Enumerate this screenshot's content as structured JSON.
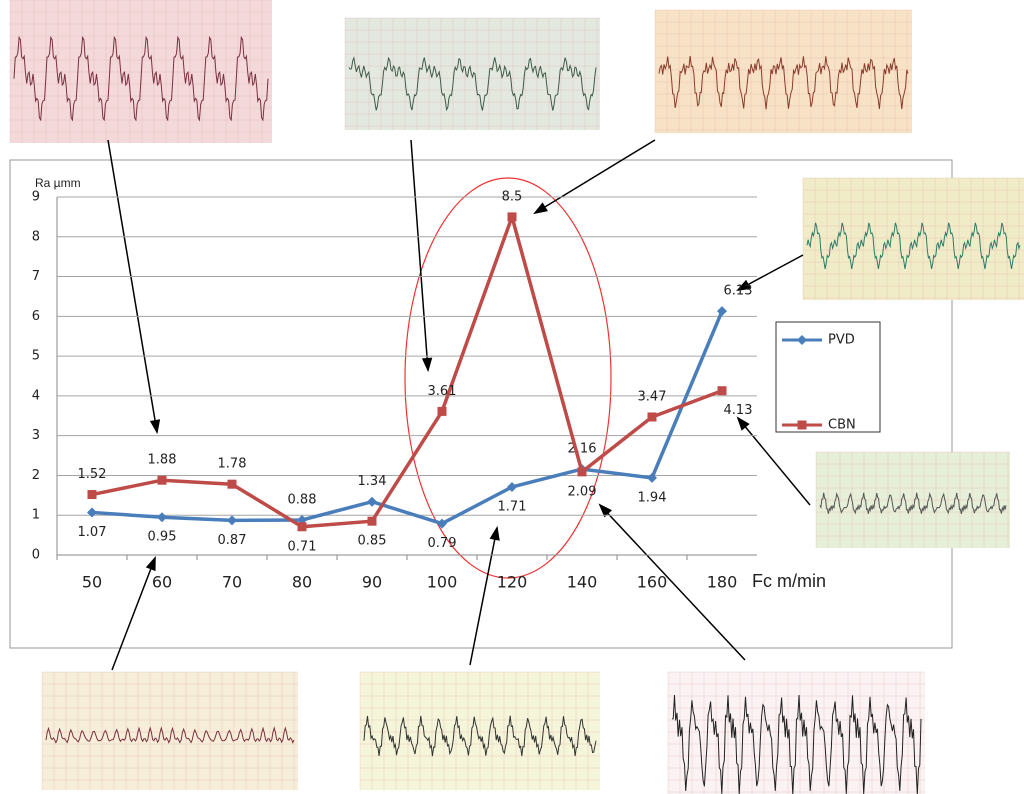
{
  "chart_data": {
    "type": "line",
    "y_label": "Ra µmm",
    "x_label": "Fc m/min",
    "categories": [
      "50",
      "60",
      "70",
      "80",
      "90",
      "100",
      "120",
      "140",
      "160",
      "180"
    ],
    "series": [
      {
        "name": "PVD",
        "color": "#4a7ebb",
        "marker": "diamond",
        "values": [
          1.07,
          0.95,
          0.87,
          0.88,
          1.34,
          0.79,
          1.71,
          2.16,
          1.94,
          6.13
        ]
      },
      {
        "name": "CBN",
        "color": "#be4b48",
        "marker": "square",
        "values": [
          1.52,
          1.88,
          1.78,
          0.71,
          0.85,
          3.61,
          8.5,
          2.09,
          3.47,
          4.13
        ]
      }
    ],
    "ylim": [
      0,
      9
    ],
    "yticks": [
      0,
      1,
      2,
      3,
      4,
      5,
      6,
      7,
      8,
      9
    ],
    "grid": true
  }
}
